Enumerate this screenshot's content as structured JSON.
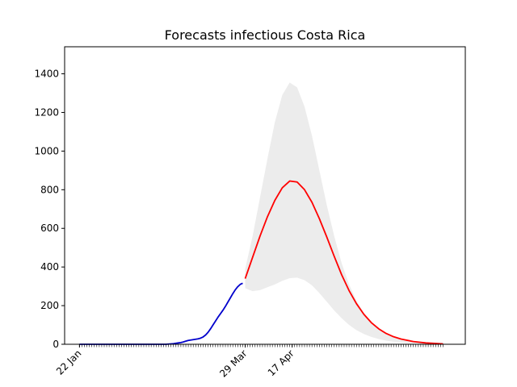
{
  "chart_data": {
    "type": "line",
    "title": "Forecasts infectious Costa Rica",
    "xlabel": "",
    "ylabel": "",
    "ylim": [
      0,
      1540
    ],
    "y_ticks": [
      0,
      200,
      400,
      600,
      800,
      1000,
      1200,
      1400
    ],
    "x_tick_labels": [
      {
        "label": "22 Jan",
        "day": 0
      },
      {
        "label": "29 Mar",
        "day": 67
      },
      {
        "label": "17 Apr",
        "day": 86
      }
    ],
    "x_minor_ticks_every_day": true,
    "x_domain_days": [
      -6,
      156
    ],
    "x_max_day": 147,
    "grid": false,
    "legend": "none",
    "colors": {
      "observed": "#0000cc",
      "forecast": "#ff0000",
      "band": "#ececec"
    },
    "series": [
      {
        "role": "observed",
        "x": [
          0,
          10,
          20,
          30,
          35,
          36,
          37,
          38,
          39,
          40,
          41,
          42,
          43,
          44,
          45,
          46,
          47,
          48,
          49,
          50,
          51,
          52,
          53,
          54,
          55,
          56,
          57,
          58,
          59,
          60,
          61,
          62,
          63,
          64,
          65,
          66
        ],
        "y": [
          0,
          0,
          0,
          0,
          0,
          1,
          2,
          3,
          5,
          7,
          9,
          12,
          16,
          20,
          22,
          24,
          26,
          28,
          32,
          38,
          48,
          62,
          80,
          100,
          120,
          140,
          158,
          176,
          196,
          218,
          240,
          262,
          282,
          298,
          310,
          316
        ]
      },
      {
        "role": "forecast",
        "x": [
          67,
          70,
          73,
          76,
          79,
          82,
          85,
          88,
          91,
          94,
          97,
          100,
          103,
          106,
          109,
          112,
          115,
          118,
          121,
          124,
          127,
          130,
          135,
          140,
          147
        ],
        "y": [
          340,
          450,
          560,
          660,
          745,
          810,
          845,
          840,
          800,
          735,
          650,
          555,
          455,
          360,
          278,
          210,
          155,
          112,
          80,
          56,
          39,
          27,
          14,
          7,
          2
        ]
      },
      {
        "role": "upper",
        "x": [
          67,
          70,
          73,
          76,
          79,
          82,
          85,
          88,
          91,
          94,
          97,
          100,
          103,
          106,
          109,
          112,
          115,
          118,
          121,
          124,
          127,
          130,
          135,
          140,
          147
        ],
        "y": [
          390,
          560,
          760,
          960,
          1150,
          1290,
          1355,
          1330,
          1230,
          1080,
          900,
          720,
          560,
          420,
          310,
          225,
          162,
          115,
          82,
          57,
          40,
          28,
          15,
          7,
          2
        ]
      },
      {
        "role": "lower",
        "x": [
          67,
          70,
          73,
          76,
          79,
          82,
          85,
          88,
          91,
          94,
          97,
          100,
          103,
          106,
          109,
          112,
          115,
          118,
          121,
          124,
          127,
          130,
          135,
          140,
          147
        ],
        "y": [
          290,
          275,
          280,
          295,
          310,
          328,
          342,
          345,
          332,
          305,
          265,
          220,
          175,
          135,
          100,
          73,
          53,
          38,
          27,
          19,
          13,
          9,
          5,
          2,
          1
        ]
      }
    ]
  }
}
